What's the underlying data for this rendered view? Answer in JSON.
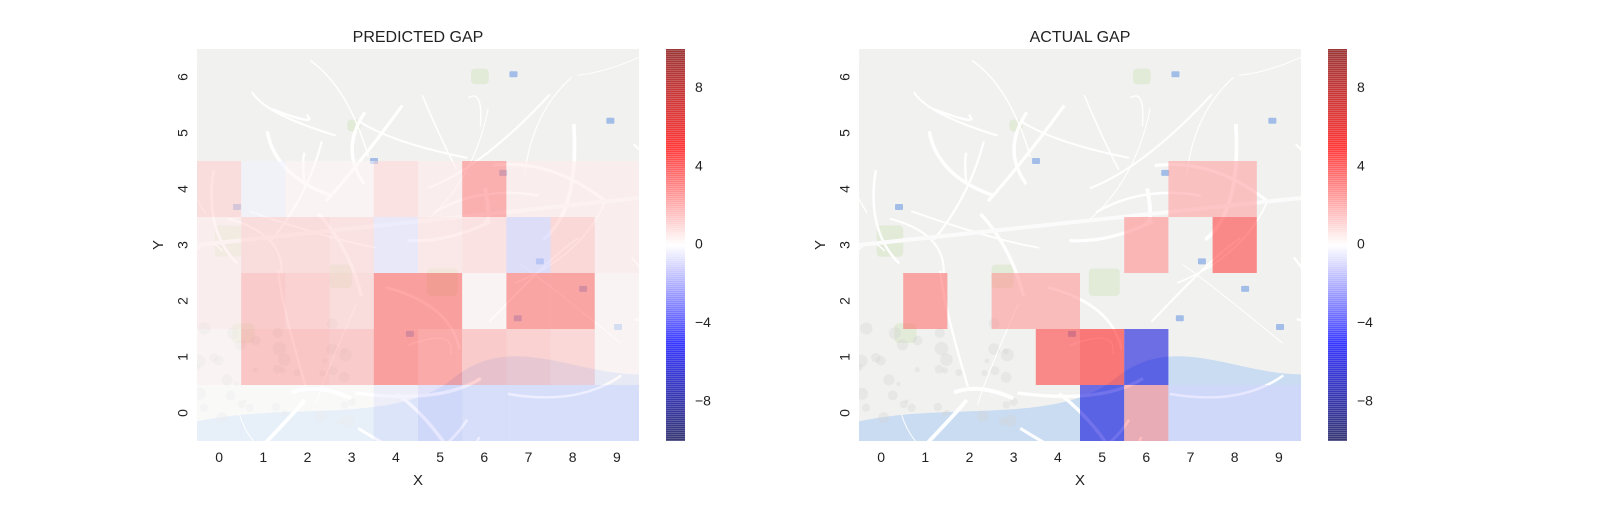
{
  "chart_data": [
    {
      "type": "heatmap",
      "title": "PREDICTED GAP",
      "xlabel": "X",
      "ylabel": "Y",
      "x_ticks": [
        "0",
        "1",
        "2",
        "3",
        "4",
        "5",
        "6",
        "7",
        "8",
        "9"
      ],
      "y_ticks": [
        "0",
        "1",
        "2",
        "3",
        "4",
        "5",
        "6"
      ],
      "xlim": [
        -0.5,
        9.5
      ],
      "ylim": [
        -0.5,
        6.5
      ],
      "colorbar": {
        "range": [
          -10,
          10
        ],
        "ticks": [
          -8,
          -4,
          0,
          4,
          8
        ],
        "colormap": "seismic"
      },
      "background": "map",
      "cells": [
        {
          "x": 0,
          "y": 4,
          "v": 1.0
        },
        {
          "x": 1,
          "y": 4,
          "v": -0.3
        },
        {
          "x": 2,
          "y": 4,
          "v": 0.2
        },
        {
          "x": 3,
          "y": 4,
          "v": 0.2
        },
        {
          "x": 4,
          "y": 4,
          "v": 0.8
        },
        {
          "x": 5,
          "y": 4,
          "v": 0.4
        },
        {
          "x": 6,
          "y": 4,
          "v": 2.6
        },
        {
          "x": 7,
          "y": 4,
          "v": 0.4
        },
        {
          "x": 8,
          "y": 4,
          "v": 0.4
        },
        {
          "x": 9,
          "y": 4,
          "v": 0.4
        },
        {
          "x": 0,
          "y": 3,
          "v": 0.4
        },
        {
          "x": 1,
          "y": 3,
          "v": 1.0
        },
        {
          "x": 2,
          "y": 3,
          "v": 1.0
        },
        {
          "x": 3,
          "y": 3,
          "v": 0.8
        },
        {
          "x": 4,
          "y": 3,
          "v": -0.6
        },
        {
          "x": 5,
          "y": 3,
          "v": 0.6
        },
        {
          "x": 6,
          "y": 3,
          "v": 0.8
        },
        {
          "x": 7,
          "y": 3,
          "v": -1.0
        },
        {
          "x": 8,
          "y": 3,
          "v": 1.2
        },
        {
          "x": 9,
          "y": 3,
          "v": 0.4
        },
        {
          "x": 0,
          "y": 2,
          "v": 0.4
        },
        {
          "x": 1,
          "y": 2,
          "v": 1.6
        },
        {
          "x": 2,
          "y": 2,
          "v": 1.4
        },
        {
          "x": 3,
          "y": 2,
          "v": 1.0
        },
        {
          "x": 4,
          "y": 2,
          "v": 3.2
        },
        {
          "x": 5,
          "y": 2,
          "v": 3.2
        },
        {
          "x": 6,
          "y": 2,
          "v": 0.2
        },
        {
          "x": 7,
          "y": 2,
          "v": 3.0
        },
        {
          "x": 8,
          "y": 2,
          "v": 3.0
        },
        {
          "x": 9,
          "y": 2,
          "v": 0.2
        },
        {
          "x": 0,
          "y": 1,
          "v": 0.2
        },
        {
          "x": 1,
          "y": 1,
          "v": 1.8
        },
        {
          "x": 2,
          "y": 1,
          "v": 1.8
        },
        {
          "x": 3,
          "y": 1,
          "v": 1.6
        },
        {
          "x": 4,
          "y": 1,
          "v": 3.2
        },
        {
          "x": 5,
          "y": 1,
          "v": 2.8
        },
        {
          "x": 6,
          "y": 1,
          "v": 1.6
        },
        {
          "x": 7,
          "y": 1,
          "v": 1.4
        },
        {
          "x": 8,
          "y": 1,
          "v": 1.2
        },
        {
          "x": 9,
          "y": 1,
          "v": 0.2
        },
        {
          "x": 0,
          "y": 0,
          "v": 0.0
        },
        {
          "x": 1,
          "y": 0,
          "v": 0.0
        },
        {
          "x": 2,
          "y": 0,
          "v": 0.0
        },
        {
          "x": 3,
          "y": 0,
          "v": 0.0
        },
        {
          "x": 4,
          "y": 0,
          "v": -0.4
        },
        {
          "x": 5,
          "y": 0,
          "v": -0.8
        },
        {
          "x": 6,
          "y": 0,
          "v": -0.6
        },
        {
          "x": 7,
          "y": 0,
          "v": -0.6
        },
        {
          "x": 8,
          "y": 0,
          "v": -0.6
        },
        {
          "x": 9,
          "y": 0,
          "v": -0.6
        }
      ]
    },
    {
      "type": "heatmap",
      "title": "ACTUAL GAP",
      "xlabel": "X",
      "ylabel": "Y",
      "x_ticks": [
        "0",
        "1",
        "2",
        "3",
        "4",
        "5",
        "6",
        "7",
        "8",
        "9"
      ],
      "y_ticks": [
        "0",
        "1",
        "2",
        "3",
        "4",
        "5",
        "6"
      ],
      "xlim": [
        -0.5,
        9.5
      ],
      "ylim": [
        -0.5,
        6.5
      ],
      "colorbar": {
        "range": [
          -10,
          10
        ],
        "ticks": [
          -8,
          -4,
          0,
          4,
          8
        ],
        "colormap": "seismic"
      },
      "background": "map",
      "cells": [
        {
          "x": 7,
          "y": 4,
          "v": 2.0
        },
        {
          "x": 8,
          "y": 4,
          "v": 2.0
        },
        {
          "x": 6,
          "y": 3,
          "v": 2.4
        },
        {
          "x": 8,
          "y": 3,
          "v": 4.0
        },
        {
          "x": 1,
          "y": 2,
          "v": 3.0
        },
        {
          "x": 3,
          "y": 2,
          "v": 2.2
        },
        {
          "x": 4,
          "y": 2,
          "v": 2.2
        },
        {
          "x": 4,
          "y": 1,
          "v": 4.0
        },
        {
          "x": 5,
          "y": 1,
          "v": 4.6
        },
        {
          "x": 6,
          "y": 1,
          "v": -6.0
        },
        {
          "x": 5,
          "y": 0,
          "v": -6.0
        },
        {
          "x": 6,
          "y": 0,
          "v": 2.4
        },
        {
          "x": 7,
          "y": 0,
          "v": -0.8
        },
        {
          "x": 8,
          "y": 0,
          "v": -0.8
        },
        {
          "x": 9,
          "y": 0,
          "v": -0.8
        }
      ]
    }
  ]
}
